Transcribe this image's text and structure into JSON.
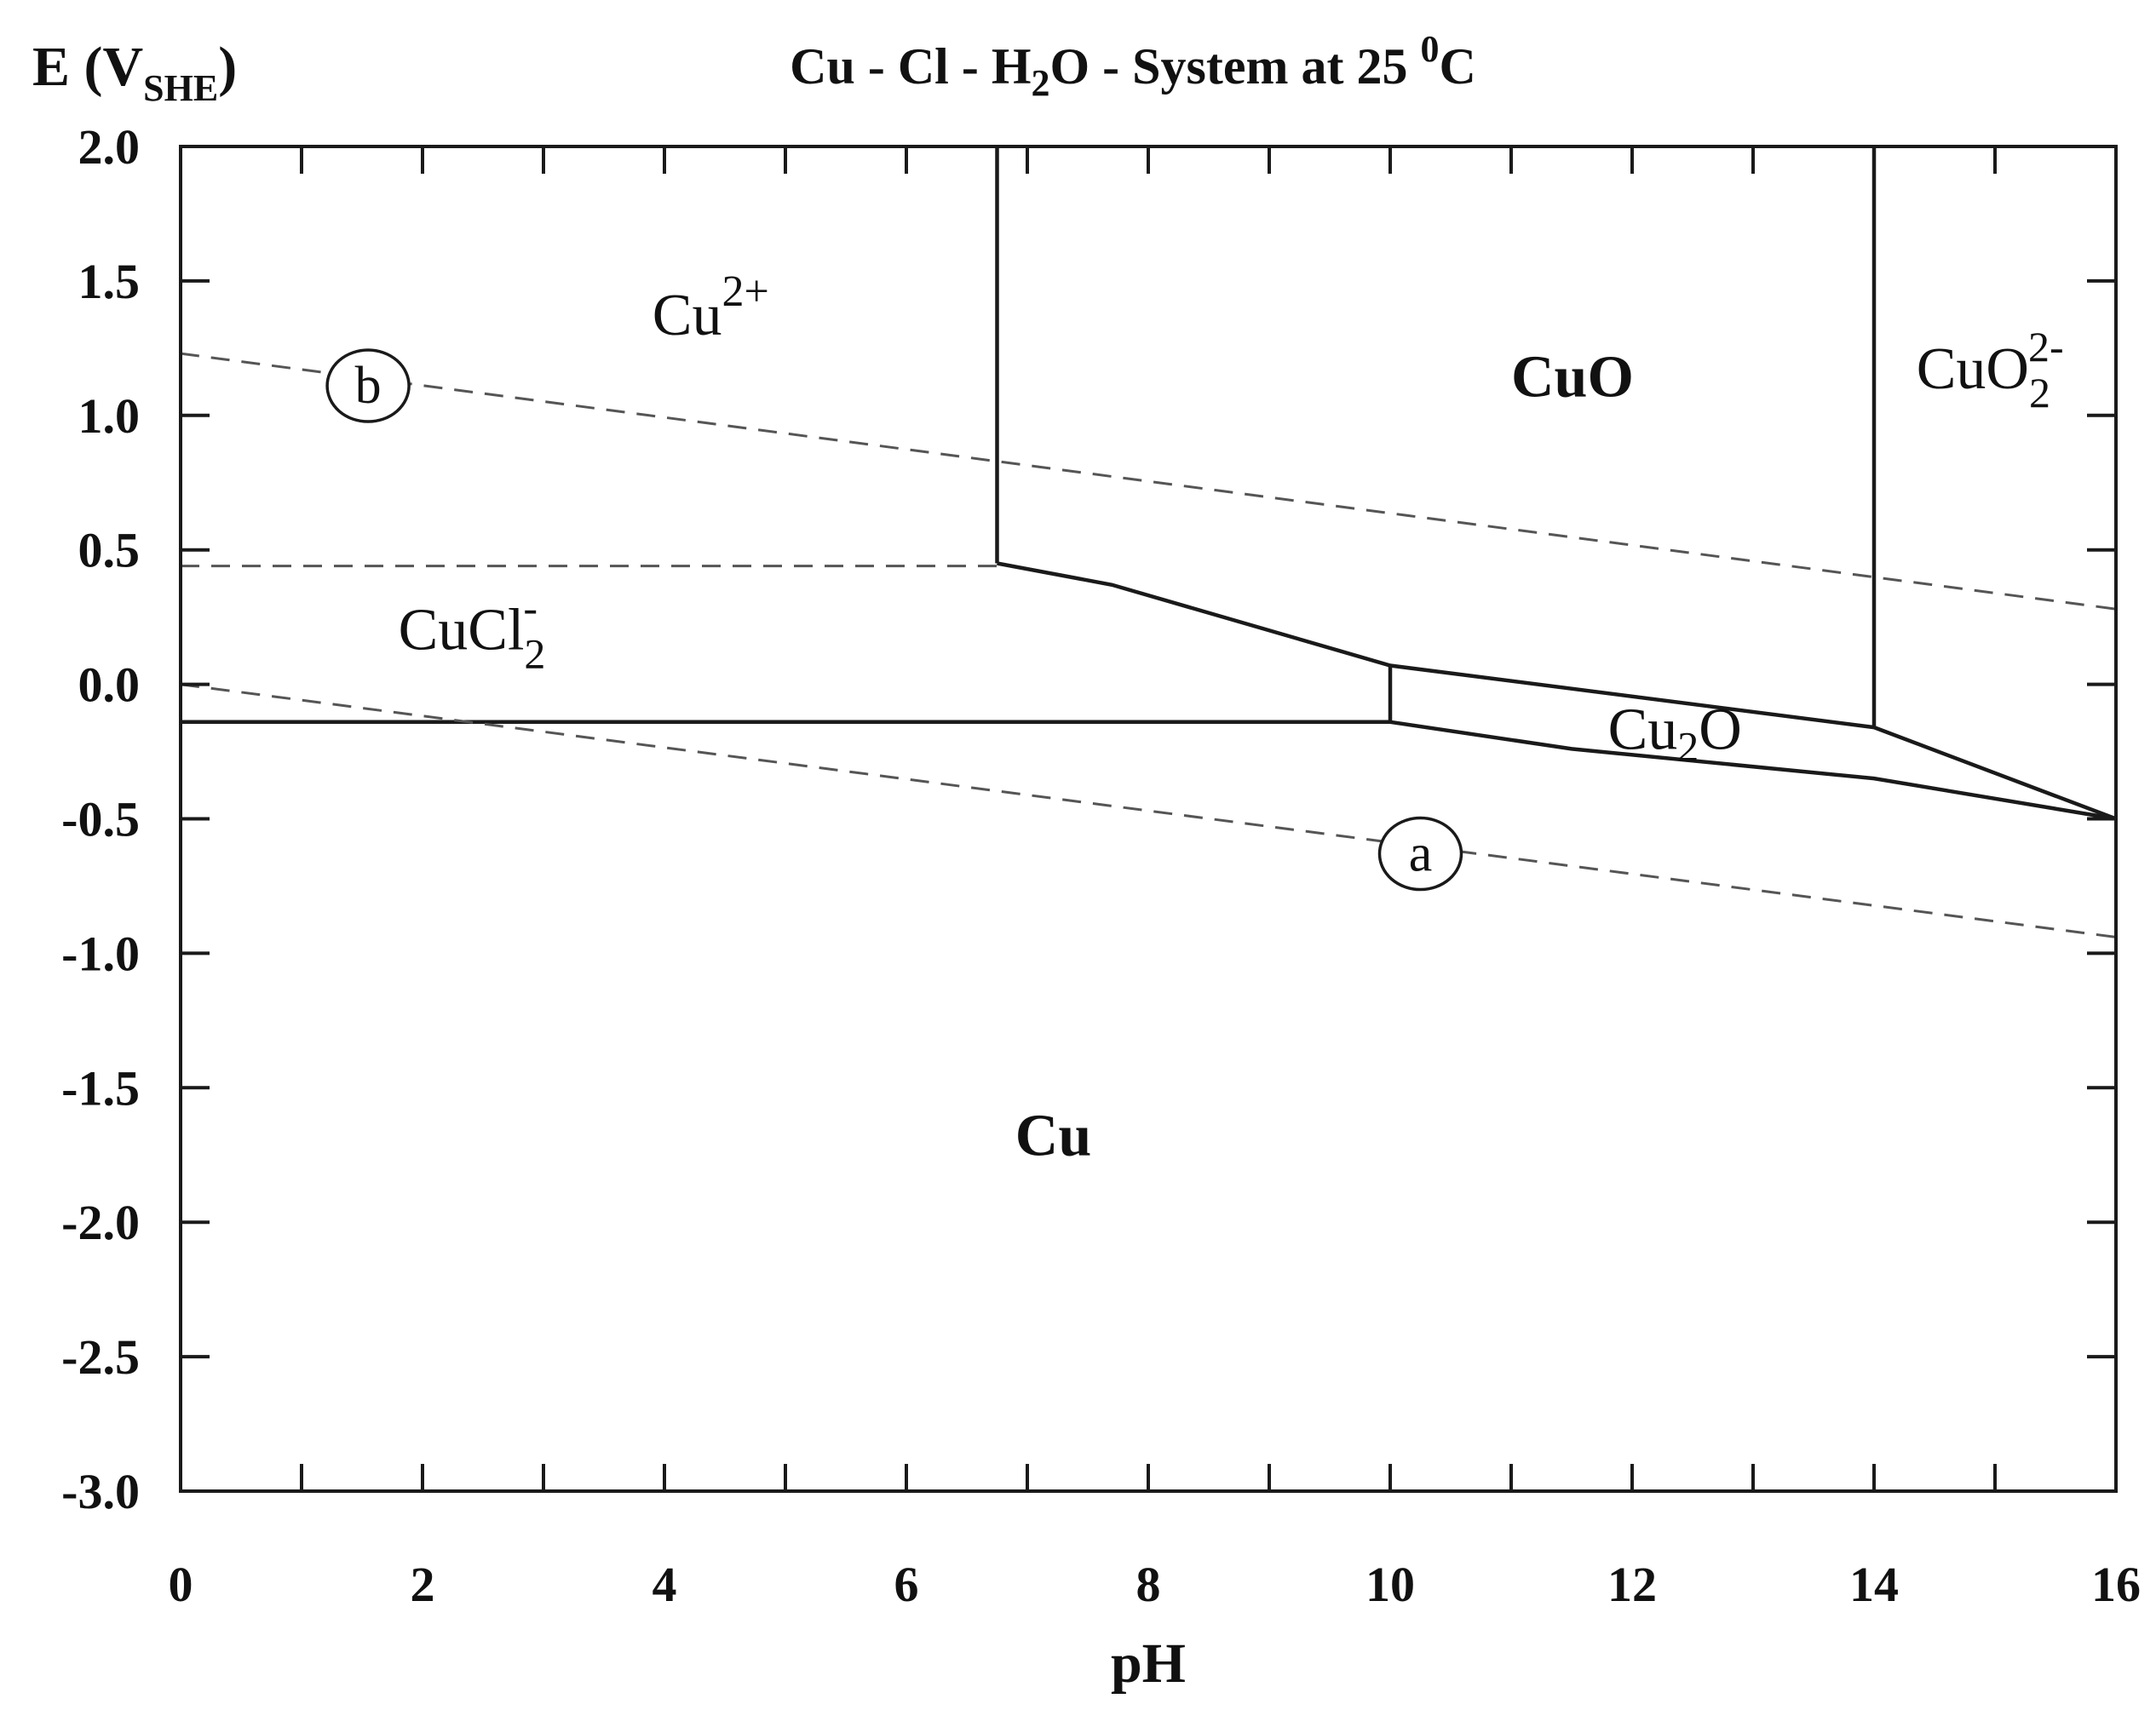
{
  "chart_data": {
    "type": "line",
    "title": "Cu - Cl - H₂O - System at 25 ⁰C",
    "title_parts": {
      "main": "Cu - Cl - H",
      "sub": "2",
      "mid": "O - System at 25 ",
      "sup": "0",
      "end": "C"
    },
    "xlabel": "pH",
    "ylabel": "E (V",
    "ylabel_sub": "SHE",
    "ylabel_close": ")",
    "xlim": [
      0,
      16
    ],
    "ylim": [
      -3.0,
      2.0
    ],
    "x_ticks": [
      0,
      2,
      4,
      6,
      8,
      10,
      12,
      14,
      16
    ],
    "x_tick_labels": [
      "0",
      "2",
      "4",
      "6",
      "8",
      "10",
      "12",
      "14",
      "16"
    ],
    "y_ticks": [
      2.0,
      1.5,
      1.0,
      0.5,
      0.0,
      -0.5,
      -1.0,
      -1.5,
      -2.0,
      -2.5,
      -3.0
    ],
    "y_tick_labels": [
      "2.0",
      "1.5",
      "1.0",
      "0.5",
      "0.0",
      "-0.5",
      "-1.0",
      "-1.5",
      "-2.0",
      "-2.5",
      "-3.0"
    ],
    "x_minor_step": 1,
    "grid": false,
    "line_color": "#1a1a1a",
    "dashed_color": "#555555",
    "boundaries": [
      {
        "name": "cu2-cuo",
        "style": "solid",
        "points": [
          [
            6.75,
            2.0
          ],
          [
            6.75,
            0.45
          ]
        ]
      },
      {
        "name": "cuo-cuo2",
        "style": "solid",
        "points": [
          [
            14.0,
            2.0
          ],
          [
            14.0,
            -0.16
          ]
        ]
      },
      {
        "name": "cu2-cucl2",
        "style": "dashed",
        "points": [
          [
            0,
            0.44
          ],
          [
            6.75,
            0.44
          ]
        ]
      },
      {
        "name": "cuo-lower",
        "style": "solid",
        "points": [
          [
            6.75,
            0.45
          ],
          [
            7.7,
            0.37
          ],
          [
            10.0,
            0.07
          ],
          [
            14.0,
            -0.16
          ],
          [
            16.0,
            -0.5
          ]
        ]
      },
      {
        "name": "cucl2-cu",
        "style": "solid",
        "points": [
          [
            0,
            -0.14
          ],
          [
            10.0,
            -0.14
          ]
        ]
      },
      {
        "name": "cu2o-left",
        "style": "solid",
        "points": [
          [
            10.0,
            0.07
          ],
          [
            10.0,
            -0.14
          ]
        ]
      },
      {
        "name": "cu2o-cu",
        "style": "solid",
        "points": [
          [
            10.0,
            -0.14
          ],
          [
            11.5,
            -0.24
          ],
          [
            14.0,
            -0.35
          ],
          [
            16.0,
            -0.5
          ]
        ]
      },
      {
        "name": "water-line-b",
        "style": "dashed",
        "points": [
          [
            0,
            1.23
          ],
          [
            16.0,
            0.28
          ]
        ]
      },
      {
        "name": "water-line-a",
        "style": "dashed",
        "points": [
          [
            0,
            0.0
          ],
          [
            16.0,
            -0.94
          ]
        ]
      }
    ],
    "region_labels": [
      {
        "name": "cu2plus",
        "text": "Cu",
        "sup": "2+",
        "sub": "",
        "x": 3.9,
        "y": 1.3,
        "bold": false
      },
      {
        "name": "cuo",
        "text": "CuO",
        "sup": "",
        "sub": "",
        "x": 11.0,
        "y": 1.07,
        "bold": true
      },
      {
        "name": "cuo2",
        "text": "CuO",
        "sup": "2-",
        "sub": "2",
        "x": 14.35,
        "y": 1.1,
        "bold": false
      },
      {
        "name": "cucl2",
        "text": "CuCl",
        "sup": "-",
        "sub": "2",
        "x": 1.8,
        "y": 0.13,
        "bold": false
      },
      {
        "name": "cu2o",
        "text": "Cu",
        "sup": "",
        "sub": "2",
        "after": "O",
        "x": 11.8,
        "y": -0.24,
        "bold": false
      },
      {
        "name": "cu",
        "text": "Cu",
        "sup": "",
        "sub": "",
        "x": 6.9,
        "y": -1.75,
        "bold": true
      }
    ],
    "circle_labels": [
      {
        "name": "b",
        "text": "b",
        "x": 1.55,
        "y": 1.11
      },
      {
        "name": "a",
        "text": "a",
        "x": 10.25,
        "y": -0.63
      }
    ]
  }
}
